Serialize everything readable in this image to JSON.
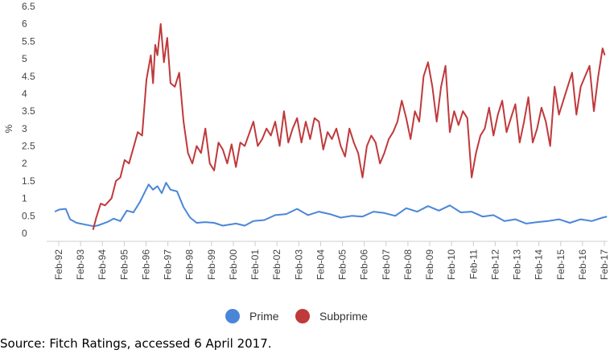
{
  "chart_data": {
    "type": "line",
    "ylabel": "%",
    "ylim": [
      0,
      6.5
    ],
    "yticks": [
      "0",
      "0.5",
      "1",
      "1.5",
      "2",
      "2.5",
      "3",
      "3.5",
      "4",
      "4.5",
      "5",
      "5.5",
      "6",
      "6.5"
    ],
    "xticks": [
      "Feb-92",
      "Feb-93",
      "Feb-94",
      "Feb-95",
      "Feb-96",
      "Feb-97",
      "Feb-98",
      "Feb-99",
      "Feb-00",
      "Feb-01",
      "Feb-02",
      "Feb-03",
      "Feb-04",
      "Feb-05",
      "Feb-06",
      "Feb-07",
      "Feb-08",
      "Feb-09",
      "Feb-10",
      "Feb-11",
      "Feb-12",
      "Feb-13",
      "Feb-14",
      "Feb-15",
      "Feb-16",
      "Feb-17"
    ],
    "grid": false,
    "legend_position": "bottom-center",
    "series": [
      {
        "name": "Prime",
        "color": "#4a86d8",
        "x": [
          1991.9,
          1992.1,
          1992.4,
          1992.6,
          1992.9,
          1993.3,
          1993.7,
          1993.9,
          1994.3,
          1994.6,
          1994.9,
          1995.2,
          1995.5,
          1995.8,
          1996.0,
          1996.2,
          1996.4,
          1996.6,
          1996.8,
          1997.0,
          1997.2,
          1997.5,
          1997.8,
          1998.1,
          1998.4,
          1998.8,
          1999.2,
          1999.6,
          2000.2,
          2000.6,
          2001.0,
          2001.5,
          2002.0,
          2002.5,
          2003.0,
          2003.5,
          2004.0,
          2004.5,
          2005.0,
          2005.5,
          2006.0,
          2006.5,
          2007.0,
          2007.5,
          2008.0,
          2008.5,
          2009.0,
          2009.5,
          2010.0,
          2010.5,
          2011.0,
          2011.5,
          2012.0,
          2012.5,
          2013.0,
          2013.5,
          2014.0,
          2014.5,
          2015.0,
          2015.5,
          2016.0,
          2016.5,
          2017.0,
          2017.2
        ],
        "values": [
          0.62,
          0.68,
          0.7,
          0.4,
          0.3,
          0.25,
          0.2,
          0.23,
          0.32,
          0.42,
          0.35,
          0.65,
          0.6,
          0.9,
          1.15,
          1.4,
          1.25,
          1.35,
          1.15,
          1.45,
          1.25,
          1.2,
          0.75,
          0.45,
          0.3,
          0.32,
          0.3,
          0.22,
          0.28,
          0.22,
          0.35,
          0.38,
          0.52,
          0.55,
          0.7,
          0.52,
          0.62,
          0.55,
          0.45,
          0.5,
          0.48,
          0.62,
          0.58,
          0.5,
          0.72,
          0.62,
          0.78,
          0.65,
          0.8,
          0.6,
          0.62,
          0.48,
          0.52,
          0.35,
          0.4,
          0.28,
          0.32,
          0.35,
          0.4,
          0.3,
          0.4,
          0.35,
          0.45,
          0.48
        ]
      },
      {
        "name": "Subprime",
        "color": "#c0393b",
        "x": [
          1993.65,
          1993.8,
          1994.0,
          1994.2,
          1994.5,
          1994.7,
          1994.9,
          1995.1,
          1995.3,
          1995.5,
          1995.7,
          1995.9,
          1996.1,
          1996.3,
          1996.4,
          1996.5,
          1996.6,
          1996.75,
          1996.9,
          1997.05,
          1997.2,
          1997.4,
          1997.6,
          1997.8,
          1998.0,
          1998.2,
          1998.4,
          1998.6,
          1998.8,
          1999.0,
          1999.2,
          1999.4,
          1999.6,
          1999.8,
          2000.0,
          2000.2,
          2000.4,
          2000.6,
          2000.8,
          2001.0,
          2001.2,
          2001.4,
          2001.6,
          2001.8,
          2002.0,
          2002.2,
          2002.4,
          2002.6,
          2002.8,
          2003.0,
          2003.2,
          2003.4,
          2003.6,
          2003.8,
          2004.0,
          2004.2,
          2004.4,
          2004.6,
          2004.8,
          2005.0,
          2005.2,
          2005.4,
          2005.6,
          2005.8,
          2006.0,
          2006.2,
          2006.4,
          2006.6,
          2006.8,
          2007.0,
          2007.2,
          2007.4,
          2007.6,
          2007.8,
          2008.0,
          2008.2,
          2008.4,
          2008.6,
          2008.8,
          2009.0,
          2009.2,
          2009.4,
          2009.6,
          2009.8,
          2010.0,
          2010.2,
          2010.4,
          2010.6,
          2010.8,
          2011.0,
          2011.2,
          2011.4,
          2011.6,
          2011.8,
          2012.0,
          2012.2,
          2012.4,
          2012.6,
          2012.8,
          2013.0,
          2013.2,
          2013.4,
          2013.6,
          2013.8,
          2014.0,
          2014.2,
          2014.4,
          2014.6,
          2014.8,
          2015.0,
          2015.2,
          2015.4,
          2015.6,
          2015.8,
          2016.0,
          2016.2,
          2016.4,
          2016.6,
          2016.8,
          2017.0,
          2017.1
        ],
        "values": [
          0.1,
          0.45,
          0.85,
          0.8,
          1.0,
          1.5,
          1.6,
          2.1,
          2.0,
          2.45,
          2.9,
          2.8,
          4.4,
          5.1,
          4.3,
          5.4,
          5.1,
          6.0,
          4.9,
          5.6,
          4.3,
          4.2,
          4.6,
          3.2,
          2.3,
          2.0,
          2.5,
          2.3,
          3.0,
          2.0,
          1.8,
          2.6,
          2.4,
          2.0,
          2.55,
          1.9,
          2.6,
          2.5,
          2.85,
          3.2,
          2.5,
          2.7,
          3.0,
          2.8,
          3.2,
          2.5,
          3.5,
          2.6,
          3.0,
          3.3,
          2.6,
          3.2,
          2.7,
          3.3,
          3.2,
          2.4,
          2.9,
          2.7,
          3.0,
          2.5,
          2.2,
          3.0,
          2.6,
          2.3,
          1.6,
          2.5,
          2.8,
          2.6,
          2.0,
          2.3,
          2.7,
          2.9,
          3.2,
          3.8,
          3.3,
          2.7,
          3.5,
          3.2,
          4.5,
          4.9,
          4.2,
          3.2,
          4.2,
          4.8,
          2.9,
          3.5,
          3.1,
          3.5,
          3.3,
          1.6,
          2.3,
          2.8,
          3.0,
          3.6,
          2.8,
          3.4,
          3.8,
          2.9,
          3.3,
          3.7,
          2.6,
          3.2,
          3.9,
          2.6,
          3.0,
          3.6,
          3.2,
          2.5,
          4.2,
          3.4,
          3.8,
          4.2,
          4.6,
          3.4,
          4.2,
          4.5,
          4.8,
          3.5,
          4.5,
          5.3,
          5.1
        ]
      }
    ]
  },
  "legend": {
    "items": [
      {
        "label": "Prime",
        "color": "#4a86d8"
      },
      {
        "label": "Subprime",
        "color": "#c0393b"
      }
    ]
  },
  "footer": {
    "source": "Source: Fitch Ratings, accessed 6 April 2017."
  }
}
